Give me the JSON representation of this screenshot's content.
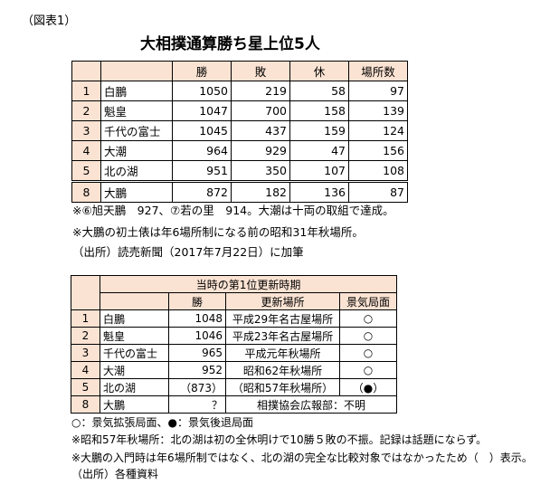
{
  "label": "（図表1）",
  "title": "大相撲通算勝ち星上位5人",
  "table1": {
    "headers": [
      "",
      "",
      "勝",
      "敗",
      "休",
      "場所数"
    ],
    "rows": [
      [
        "1",
        "白鵬",
        "1050",
        "219",
        "58",
        "97"
      ],
      [
        "2",
        "魁皇",
        "1047",
        "700",
        "158",
        "139"
      ],
      [
        "3",
        "千代の富士",
        "1045",
        "437",
        "159",
        "124"
      ],
      [
        "4",
        "大潮",
        "964",
        "929",
        "47",
        "156"
      ],
      [
        "5",
        "北の湖",
        "951",
        "350",
        "107",
        "108"
      ],
      [
        "8",
        "大鵬",
        "872",
        "182",
        "136",
        "87"
      ]
    ],
    "notes": [
      "※⑥旭天鵬　927、⑦若の里　914。大潮は十両の取組で達成。",
      "※大鵬の初土俵は年6場所制になる前の昭和31年秋場所。",
      "（出所）読売新聞（2017年7月22日）に加筆"
    ]
  },
  "table2": {
    "group_header": "当時の第1位更新時期",
    "headers": [
      "",
      "",
      "勝",
      "更新場所",
      "景気局面"
    ],
    "rows": [
      [
        "1",
        "白鵬",
        "1048",
        "平成29年名古屋場所",
        "○"
      ],
      [
        "2",
        "魁皇",
        "1046",
        "平成23年名古屋場所",
        "○"
      ],
      [
        "3",
        "千代の富士",
        "965",
        "平成元年秋場所",
        "○"
      ],
      [
        "4",
        "大潮",
        "952",
        "昭和62年秋場所",
        "○"
      ],
      [
        "5",
        "北の湖",
        "（873）",
        "（昭和57年秋場所）",
        "（●）"
      ]
    ],
    "last_row": [
      "8",
      "大鵬",
      "？",
      "相撲協会広報部：不明"
    ],
    "notes": [
      "○：景気拡張局面、●：景気後退局面",
      "※昭和57年秋場所：北の湖は初の全休明けで10勝５敗の不振。記録は話題にならず。",
      "※大鵬の入門時は年6場所制ではなく、北の湖の完全な比較対象ではなかったため（　）表示。",
      "（出所）各種資料"
    ]
  },
  "colors": {
    "header_bg": "#fbe3d3"
  }
}
